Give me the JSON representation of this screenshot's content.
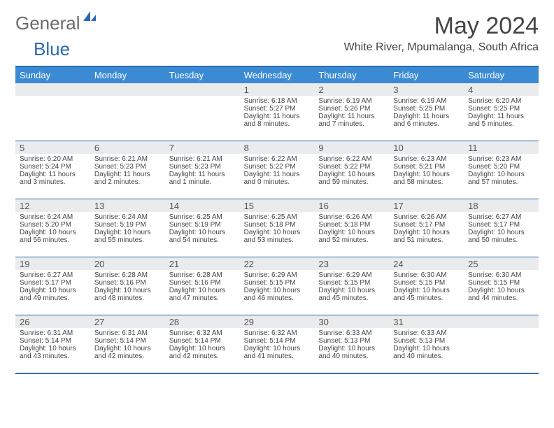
{
  "brand": {
    "part1": "General",
    "part2": "Blue"
  },
  "title": "May 2024",
  "location": "White River, Mpumalanga, South Africa",
  "colors": {
    "header_bg": "#3b8bd4",
    "border": "#2a6ab0",
    "daynum_bg": "#e9ebed",
    "text": "#444444"
  },
  "dow": [
    "Sunday",
    "Monday",
    "Tuesday",
    "Wednesday",
    "Thursday",
    "Friday",
    "Saturday"
  ],
  "weeks": [
    [
      {
        "n": "",
        "sr": "",
        "ss": "",
        "dl": ""
      },
      {
        "n": "",
        "sr": "",
        "ss": "",
        "dl": ""
      },
      {
        "n": "",
        "sr": "",
        "ss": "",
        "dl": ""
      },
      {
        "n": "1",
        "sr": "Sunrise: 6:18 AM",
        "ss": "Sunset: 5:27 PM",
        "dl": "Daylight: 11 hours and 8 minutes."
      },
      {
        "n": "2",
        "sr": "Sunrise: 6:19 AM",
        "ss": "Sunset: 5:26 PM",
        "dl": "Daylight: 11 hours and 7 minutes."
      },
      {
        "n": "3",
        "sr": "Sunrise: 6:19 AM",
        "ss": "Sunset: 5:25 PM",
        "dl": "Daylight: 11 hours and 6 minutes."
      },
      {
        "n": "4",
        "sr": "Sunrise: 6:20 AM",
        "ss": "Sunset: 5:25 PM",
        "dl": "Daylight: 11 hours and 5 minutes."
      }
    ],
    [
      {
        "n": "5",
        "sr": "Sunrise: 6:20 AM",
        "ss": "Sunset: 5:24 PM",
        "dl": "Daylight: 11 hours and 3 minutes."
      },
      {
        "n": "6",
        "sr": "Sunrise: 6:21 AM",
        "ss": "Sunset: 5:23 PM",
        "dl": "Daylight: 11 hours and 2 minutes."
      },
      {
        "n": "7",
        "sr": "Sunrise: 6:21 AM",
        "ss": "Sunset: 5:23 PM",
        "dl": "Daylight: 11 hours and 1 minute."
      },
      {
        "n": "8",
        "sr": "Sunrise: 6:22 AM",
        "ss": "Sunset: 5:22 PM",
        "dl": "Daylight: 11 hours and 0 minutes."
      },
      {
        "n": "9",
        "sr": "Sunrise: 6:22 AM",
        "ss": "Sunset: 5:22 PM",
        "dl": "Daylight: 10 hours and 59 minutes."
      },
      {
        "n": "10",
        "sr": "Sunrise: 6:23 AM",
        "ss": "Sunset: 5:21 PM",
        "dl": "Daylight: 10 hours and 58 minutes."
      },
      {
        "n": "11",
        "sr": "Sunrise: 6:23 AM",
        "ss": "Sunset: 5:20 PM",
        "dl": "Daylight: 10 hours and 57 minutes."
      }
    ],
    [
      {
        "n": "12",
        "sr": "Sunrise: 6:24 AM",
        "ss": "Sunset: 5:20 PM",
        "dl": "Daylight: 10 hours and 56 minutes."
      },
      {
        "n": "13",
        "sr": "Sunrise: 6:24 AM",
        "ss": "Sunset: 5:19 PM",
        "dl": "Daylight: 10 hours and 55 minutes."
      },
      {
        "n": "14",
        "sr": "Sunrise: 6:25 AM",
        "ss": "Sunset: 5:19 PM",
        "dl": "Daylight: 10 hours and 54 minutes."
      },
      {
        "n": "15",
        "sr": "Sunrise: 6:25 AM",
        "ss": "Sunset: 5:18 PM",
        "dl": "Daylight: 10 hours and 53 minutes."
      },
      {
        "n": "16",
        "sr": "Sunrise: 6:26 AM",
        "ss": "Sunset: 5:18 PM",
        "dl": "Daylight: 10 hours and 52 minutes."
      },
      {
        "n": "17",
        "sr": "Sunrise: 6:26 AM",
        "ss": "Sunset: 5:17 PM",
        "dl": "Daylight: 10 hours and 51 minutes."
      },
      {
        "n": "18",
        "sr": "Sunrise: 6:27 AM",
        "ss": "Sunset: 5:17 PM",
        "dl": "Daylight: 10 hours and 50 minutes."
      }
    ],
    [
      {
        "n": "19",
        "sr": "Sunrise: 6:27 AM",
        "ss": "Sunset: 5:17 PM",
        "dl": "Daylight: 10 hours and 49 minutes."
      },
      {
        "n": "20",
        "sr": "Sunrise: 6:28 AM",
        "ss": "Sunset: 5:16 PM",
        "dl": "Daylight: 10 hours and 48 minutes."
      },
      {
        "n": "21",
        "sr": "Sunrise: 6:28 AM",
        "ss": "Sunset: 5:16 PM",
        "dl": "Daylight: 10 hours and 47 minutes."
      },
      {
        "n": "22",
        "sr": "Sunrise: 6:29 AM",
        "ss": "Sunset: 5:15 PM",
        "dl": "Daylight: 10 hours and 46 minutes."
      },
      {
        "n": "23",
        "sr": "Sunrise: 6:29 AM",
        "ss": "Sunset: 5:15 PM",
        "dl": "Daylight: 10 hours and 45 minutes."
      },
      {
        "n": "24",
        "sr": "Sunrise: 6:30 AM",
        "ss": "Sunset: 5:15 PM",
        "dl": "Daylight: 10 hours and 45 minutes."
      },
      {
        "n": "25",
        "sr": "Sunrise: 6:30 AM",
        "ss": "Sunset: 5:15 PM",
        "dl": "Daylight: 10 hours and 44 minutes."
      }
    ],
    [
      {
        "n": "26",
        "sr": "Sunrise: 6:31 AM",
        "ss": "Sunset: 5:14 PM",
        "dl": "Daylight: 10 hours and 43 minutes."
      },
      {
        "n": "27",
        "sr": "Sunrise: 6:31 AM",
        "ss": "Sunset: 5:14 PM",
        "dl": "Daylight: 10 hours and 42 minutes."
      },
      {
        "n": "28",
        "sr": "Sunrise: 6:32 AM",
        "ss": "Sunset: 5:14 PM",
        "dl": "Daylight: 10 hours and 42 minutes."
      },
      {
        "n": "29",
        "sr": "Sunrise: 6:32 AM",
        "ss": "Sunset: 5:14 PM",
        "dl": "Daylight: 10 hours and 41 minutes."
      },
      {
        "n": "30",
        "sr": "Sunrise: 6:33 AM",
        "ss": "Sunset: 5:13 PM",
        "dl": "Daylight: 10 hours and 40 minutes."
      },
      {
        "n": "31",
        "sr": "Sunrise: 6:33 AM",
        "ss": "Sunset: 5:13 PM",
        "dl": "Daylight: 10 hours and 40 minutes."
      },
      {
        "n": "",
        "sr": "",
        "ss": "",
        "dl": ""
      }
    ]
  ]
}
